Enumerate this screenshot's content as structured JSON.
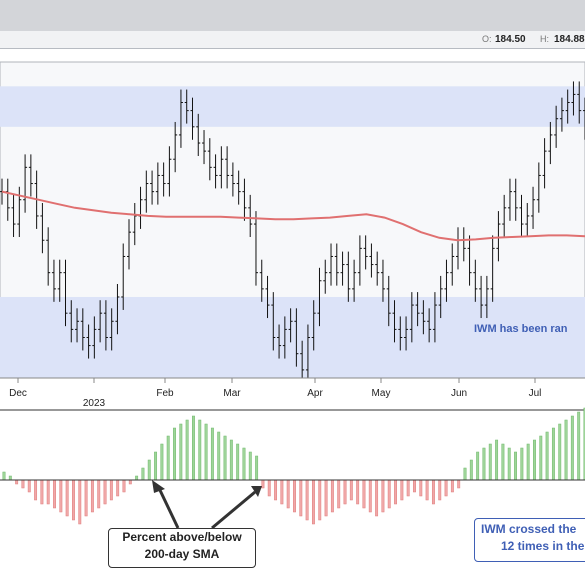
{
  "header": {
    "open_label": "O:",
    "open_value": "184.50",
    "high_label": "H:",
    "high_value": "184.88"
  },
  "chart_data": [
    {
      "type": "bar",
      "subtype": "ohlc_price_with_sma",
      "series_notes": "Daily price bars with 200-day SMA (red line); shaded blue bands mark upper and lower range boundaries",
      "x_ticks": [
        "Dec",
        "2023",
        "Feb",
        "Mar",
        "Apr",
        "May",
        "Jun",
        "Jul"
      ],
      "upper_band": [
        188,
        193
      ],
      "lower_band": [
        157,
        167
      ],
      "ylim": [
        157,
        196
      ],
      "price_closes": [
        180,
        178,
        176,
        179,
        183,
        181,
        177,
        174,
        170,
        168,
        170,
        165,
        163,
        164,
        162,
        161,
        163,
        165,
        162,
        164,
        167,
        172,
        175,
        177,
        179,
        181,
        180,
        182,
        181,
        184,
        187,
        191,
        190,
        188,
        186,
        185,
        183,
        182,
        184,
        182,
        181,
        180,
        178,
        176,
        170,
        168,
        166,
        162,
        161,
        163,
        164,
        160,
        158,
        162,
        165,
        169,
        170,
        172,
        170,
        171,
        168,
        170,
        173,
        172,
        171,
        170,
        168,
        165,
        163,
        162,
        163,
        166,
        165,
        164,
        163,
        166,
        168,
        170,
        172,
        174,
        173,
        170,
        168,
        166,
        168,
        173,
        176,
        178,
        180,
        178,
        176,
        177,
        179,
        182,
        185,
        187,
        189,
        190,
        191,
        192,
        190,
        188
      ],
      "sma200": [
        180,
        179.5,
        179,
        178.5,
        178,
        177.7,
        177.4,
        177.2,
        177,
        176.9,
        176.9,
        176.9,
        176.9,
        176.8,
        176.7,
        176.6,
        176.6,
        176.7,
        176.8,
        177.0,
        177.2,
        176.8,
        176.0,
        175.0,
        174.3,
        174.0,
        174.1,
        174.3,
        174.4,
        174.5,
        174.6,
        174.6,
        174.5
      ],
      "annotation": "IWM has been ran"
    },
    {
      "type": "bar",
      "subtype": "percent_above_below_sma",
      "ylabel": "",
      "values": [
        2,
        1,
        -1,
        -2,
        -3,
        -5,
        -6,
        -6,
        -7,
        -8,
        -9,
        -10,
        -11,
        -9,
        -8,
        -7,
        -6,
        -5,
        -4,
        -3,
        -1,
        1,
        3,
        5,
        7,
        9,
        11,
        13,
        14,
        15,
        16,
        15,
        14,
        13,
        12,
        11,
        10,
        9,
        8,
        7,
        6,
        -2,
        -4,
        -5,
        -6,
        -7,
        -8,
        -9,
        -10,
        -11,
        -10,
        -9,
        -8,
        -7,
        -6,
        -5,
        -6,
        -7,
        -8,
        -9,
        -8,
        -7,
        -6,
        -5,
        -4,
        -3,
        -4,
        -5,
        -6,
        -5,
        -4,
        -3,
        -2,
        3,
        5,
        7,
        8,
        9,
        10,
        9,
        8,
        7,
        8,
        9,
        10,
        11,
        12,
        13,
        14,
        15,
        16,
        17,
        18
      ],
      "callouts": {
        "left": [
          "Percent above/below",
          "200-day SMA"
        ],
        "right": [
          "IWM crossed the",
          "12 times in the"
        ]
      }
    }
  ]
}
